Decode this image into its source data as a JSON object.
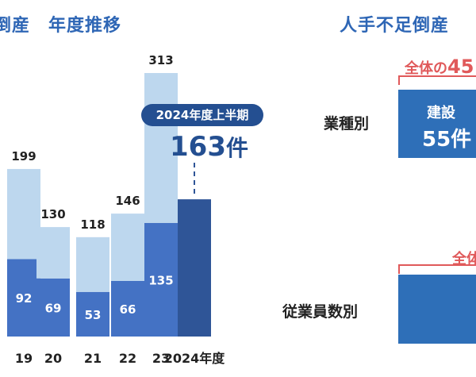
{
  "title_left": "倒産　年度推移",
  "title_right": "人手不足倒産",
  "chart_data": {
    "type": "bar",
    "categories": [
      "19",
      "20",
      "21",
      "22",
      "23",
      "2024年度"
    ],
    "series": [
      {
        "values": [
          92,
          69,
          53,
          66,
          135,
          163
        ]
      },
      {
        "values": [
          107,
          61,
          65,
          80,
          178,
          null
        ]
      }
    ],
    "totals": [
      199,
      130,
      118,
      146,
      313,
      null
    ],
    "ylim": [
      0,
      330
    ]
  },
  "callout": {
    "label": "2024年度上半期",
    "value": "163",
    "unit": "件"
  },
  "right_panel": {
    "industry_label": "業種別",
    "industry_share_prefix": "全体の",
    "industry_share_value": "45",
    "industry_box_title": "建設",
    "industry_box_value": "55件",
    "employees_label": "従業員数別",
    "employees_share_prefix": "全体"
  },
  "colors": {
    "light_bar": "#bdd7ee",
    "mid_bar": "#4472c4",
    "dark_bar": "#2f5597",
    "accent_text": "#2e66b5",
    "highlight": "#e0595a",
    "box": "#2e6fb8"
  }
}
